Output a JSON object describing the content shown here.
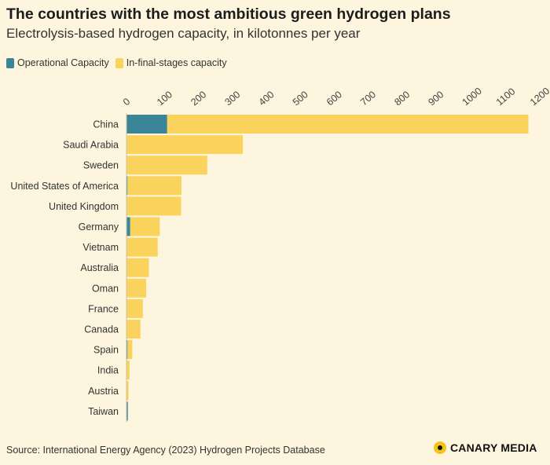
{
  "chart_data": {
    "type": "bar",
    "orientation": "horizontal",
    "stacked": true,
    "title": "The countries with the most ambitious green hydrogen plans",
    "subtitle": "Electrolysis-based hydrogen capacity, in kilotonnes per year",
    "categories": [
      "China",
      "Saudi Arabia",
      "Sweden",
      "United States of America",
      "United Kingdom",
      "Germany",
      "Vietnam",
      "Australia",
      "Oman",
      "France",
      "Canada",
      "Spain",
      "India",
      "Austria",
      "Taiwan"
    ],
    "series": [
      {
        "name": "Operational Capacity",
        "color": "#3a8597",
        "values": [
          120,
          0,
          1,
          3,
          1,
          11,
          0,
          0,
          0,
          0,
          0,
          3,
          0,
          0,
          4
        ]
      },
      {
        "name": "In-final-stages capacity",
        "color": "#f9d35b",
        "values": [
          1065,
          343,
          237,
          159,
          160,
          87,
          92,
          66,
          58,
          48,
          41,
          14,
          9,
          6,
          0
        ]
      }
    ],
    "xlim": [
      0,
      1200
    ],
    "xticks": [
      0,
      100,
      200,
      300,
      400,
      500,
      600,
      700,
      800,
      900,
      1000,
      1100,
      1200
    ],
    "xlabel": "",
    "ylabel": "",
    "grid": false,
    "legend_position": "top-left"
  },
  "source": "Source: International Energy Agency (2023) Hydrogen Projects Database",
  "logo": "CANARY MEDIA"
}
